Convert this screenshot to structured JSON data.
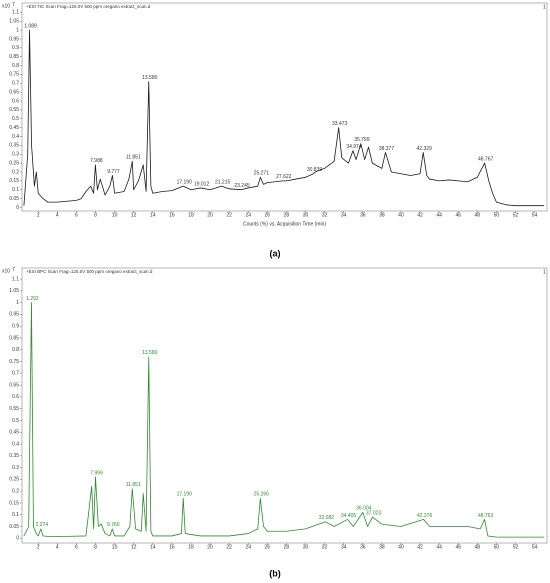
{
  "chart_data": [
    {
      "type": "line",
      "title": "+ESI TIC Scan Frag=125.0V 500 ppm oregano extract_scan.d",
      "y_multiplier": "x10",
      "y_exponent": "7",
      "corner_label": "1",
      "x_label": "Counts (%) vs. Acquisition Time (min)",
      "panel_label": "(a)",
      "color": "#1a1a1a",
      "label_color": "#333333",
      "xlim": [
        0.3,
        55.3
      ],
      "ylim": [
        -0.02,
        1.13
      ],
      "xticks": [
        2,
        4,
        6,
        8,
        10,
        12,
        14,
        16,
        18,
        20,
        22,
        24,
        26,
        28,
        30,
        32,
        34,
        36,
        38,
        40,
        42,
        44,
        46,
        48,
        50,
        52,
        54
      ],
      "yticks": [
        0,
        0.05,
        0.1,
        0.15,
        0.2,
        0.25,
        0.3,
        0.35,
        0.4,
        0.45,
        0.5,
        0.55,
        0.6,
        0.65,
        0.7,
        0.75,
        0.8,
        0.85,
        0.9,
        0.95,
        1,
        1.05,
        1.1
      ],
      "x": [
        0.5,
        0.9,
        1.089,
        1.3,
        1.6,
        1.8,
        2.0,
        2.5,
        3,
        4,
        5,
        6,
        6.5,
        7,
        7.5,
        7.8,
        7.988,
        8.2,
        8.5,
        9,
        9.5,
        9.777,
        10,
        11,
        11.5,
        11.851,
        12,
        12.5,
        13,
        13.3,
        13.58,
        13.8,
        14,
        15,
        16,
        17.19,
        18,
        19.012,
        20,
        21.215,
        22,
        23.245,
        24,
        25,
        25.271,
        25.6,
        26,
        27.622,
        28,
        29,
        30,
        30.839,
        31,
        32,
        33,
        33.473,
        33.8,
        34.5,
        34.974,
        35.3,
        35.799,
        36.2,
        36.6,
        37,
        38,
        38.377,
        39,
        40,
        41,
        42,
        42.329,
        42.7,
        43,
        44,
        45,
        46,
        47,
        48,
        48.767,
        49.2,
        49.6,
        50,
        51,
        52,
        53,
        54,
        55
      ],
      "values": [
        0.01,
        0.3,
        1.0,
        0.35,
        0.12,
        0.2,
        0.08,
        0.05,
        0.03,
        0.03,
        0.035,
        0.04,
        0.05,
        0.09,
        0.12,
        0.08,
        0.24,
        0.1,
        0.16,
        0.07,
        0.12,
        0.18,
        0.08,
        0.09,
        0.16,
        0.26,
        0.1,
        0.15,
        0.24,
        0.09,
        0.71,
        0.12,
        0.08,
        0.09,
        0.095,
        0.12,
        0.1,
        0.11,
        0.1,
        0.12,
        0.105,
        0.1,
        0.11,
        0.12,
        0.17,
        0.13,
        0.14,
        0.15,
        0.15,
        0.16,
        0.17,
        0.19,
        0.2,
        0.22,
        0.26,
        0.45,
        0.28,
        0.25,
        0.32,
        0.27,
        0.36,
        0.27,
        0.34,
        0.25,
        0.22,
        0.31,
        0.2,
        0.19,
        0.18,
        0.19,
        0.31,
        0.18,
        0.16,
        0.15,
        0.155,
        0.15,
        0.145,
        0.17,
        0.25,
        0.15,
        0.08,
        0.03,
        0.015,
        0.01,
        0.01,
        0.01,
        0.01
      ],
      "annotations": [
        {
          "x": 1.089,
          "y": 1.0,
          "label": "1.089"
        },
        {
          "x": 7.988,
          "y": 0.24,
          "label": "7.988"
        },
        {
          "x": 9.777,
          "y": 0.18,
          "label": "9.777"
        },
        {
          "x": 11.851,
          "y": 0.26,
          "label": "11.851"
        },
        {
          "x": 13.58,
          "y": 0.71,
          "label": "13.580"
        },
        {
          "x": 17.19,
          "y": 0.12,
          "label": "17.190"
        },
        {
          "x": 19.012,
          "y": 0.11,
          "label": "19.012"
        },
        {
          "x": 21.215,
          "y": 0.12,
          "label": "21.215"
        },
        {
          "x": 23.245,
          "y": 0.1,
          "label": "23.245"
        },
        {
          "x": 25.271,
          "y": 0.17,
          "label": "25.271"
        },
        {
          "x": 27.622,
          "y": 0.15,
          "label": "27.622"
        },
        {
          "x": 30.839,
          "y": 0.19,
          "label": "30.839"
        },
        {
          "x": 33.473,
          "y": 0.45,
          "label": "33.473"
        },
        {
          "x": 34.974,
          "y": 0.32,
          "label": "34.974"
        },
        {
          "x": 35.799,
          "y": 0.36,
          "label": "35.799"
        },
        {
          "x": 38.377,
          "y": 0.31,
          "label": "38.377"
        },
        {
          "x": 42.329,
          "y": 0.31,
          "label": "42.329"
        },
        {
          "x": 48.767,
          "y": 0.25,
          "label": "48.767"
        }
      ]
    },
    {
      "type": "line",
      "title": "+ESI BPC Scan Frag=125.0V 500 ppm oregano extract_scan.d",
      "y_multiplier": "x10",
      "y_exponent": "7",
      "corner_label": "1",
      "panel_label": "(b)",
      "color": "#2e8b2e",
      "label_color": "#2e8b2e",
      "xlim": [
        0.3,
        55.3
      ],
      "ylim": [
        -0.02,
        1.13
      ],
      "xticks": [
        2,
        4,
        6,
        8,
        10,
        12,
        14,
        16,
        18,
        20,
        22,
        24,
        26,
        28,
        30,
        32,
        34,
        36,
        38,
        40,
        42,
        44,
        46,
        48,
        50,
        52,
        54
      ],
      "yticks": [
        0,
        0.05,
        0.1,
        0.15,
        0.2,
        0.25,
        0.3,
        0.35,
        0.4,
        0.45,
        0.5,
        0.55,
        0.6,
        0.65,
        0.7,
        0.75,
        0.8,
        0.85,
        0.9,
        0.95,
        1,
        1.05,
        1.1
      ],
      "x": [
        0.5,
        1.0,
        1.292,
        1.5,
        1.8,
        2.0,
        2.274,
        2.5,
        3,
        5,
        7,
        7.6,
        7.8,
        7.999,
        8.3,
        8.6,
        9,
        9.5,
        9.76,
        10,
        11,
        11.6,
        11.851,
        12.2,
        12.8,
        13.0,
        13.3,
        13.58,
        13.8,
        14,
        16,
        17.0,
        17.19,
        17.4,
        19,
        22,
        24,
        25,
        25.266,
        25.6,
        26,
        28,
        30,
        32.082,
        33,
        34.405,
        35,
        36.004,
        36.5,
        37.023,
        38,
        40,
        42.376,
        43,
        45,
        47,
        48.3,
        48.763,
        49.1,
        50,
        52,
        54,
        55
      ],
      "values": [
        0.01,
        0.05,
        1.0,
        0.05,
        0.02,
        0.01,
        0.04,
        0.01,
        0.008,
        0.008,
        0.01,
        0.22,
        0.04,
        0.26,
        0.05,
        0.06,
        0.02,
        0.01,
        0.04,
        0.01,
        0.01,
        0.05,
        0.21,
        0.04,
        0.03,
        0.19,
        0.03,
        0.77,
        0.03,
        0.01,
        0.01,
        0.02,
        0.17,
        0.02,
        0.01,
        0.01,
        0.02,
        0.04,
        0.17,
        0.05,
        0.03,
        0.03,
        0.04,
        0.07,
        0.05,
        0.08,
        0.05,
        0.11,
        0.05,
        0.09,
        0.06,
        0.05,
        0.08,
        0.05,
        0.05,
        0.05,
        0.04,
        0.08,
        0.01,
        0.005,
        0.005,
        0.005,
        0.005
      ],
      "annotations": [
        {
          "x": 1.292,
          "y": 1.0,
          "label": "1.292"
        },
        {
          "x": 2.274,
          "y": 0.04,
          "label": "2.274"
        },
        {
          "x": 7.999,
          "y": 0.26,
          "label": "7.999"
        },
        {
          "x": 9.76,
          "y": 0.04,
          "label": "9.760"
        },
        {
          "x": 11.851,
          "y": 0.21,
          "label": "11.851"
        },
        {
          "x": 13.58,
          "y": 0.77,
          "label": "13.580"
        },
        {
          "x": 17.19,
          "y": 0.17,
          "label": "17.190"
        },
        {
          "x": 25.266,
          "y": 0.17,
          "label": "25.266"
        },
        {
          "x": 32.082,
          "y": 0.07,
          "label": "32.082"
        },
        {
          "x": 34.405,
          "y": 0.08,
          "label": "34.405"
        },
        {
          "x": 36.004,
          "y": 0.11,
          "label": "36.004"
        },
        {
          "x": 37.023,
          "y": 0.09,
          "label": "37.023"
        },
        {
          "x": 42.376,
          "y": 0.08,
          "label": "42.376"
        },
        {
          "x": 48.763,
          "y": 0.08,
          "label": "48.763"
        }
      ]
    }
  ]
}
